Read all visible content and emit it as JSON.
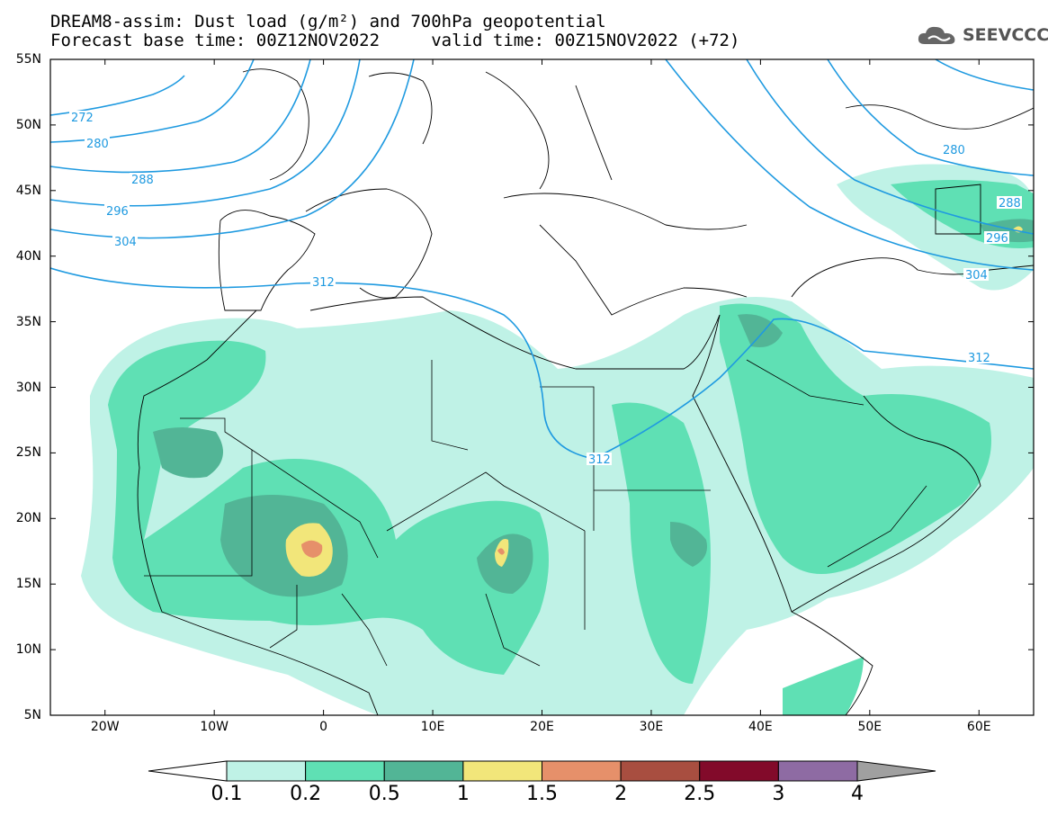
{
  "header": {
    "line1": "DREAM8-assim: Dust load (g/m²) and 700hPa geopotential",
    "line2": "Forecast base time: 00Z12NOV2022     valid time: 00Z15NOV2022 (+72)"
  },
  "logo": {
    "text": "SEEVCCC",
    "icon": "cloud-logo-icon"
  },
  "map": {
    "lon_range": [
      -25,
      65
    ],
    "lat_range": [
      5,
      55
    ],
    "y_ticks": [
      "55N",
      "50N",
      "45N",
      "40N",
      "35N",
      "30N",
      "25N",
      "20N",
      "15N",
      "10N",
      "5N"
    ],
    "x_ticks": [
      "20W",
      "10W",
      "0",
      "10E",
      "20E",
      "30E",
      "40E",
      "50E",
      "60E"
    ],
    "contour_labels": [
      "272",
      "280",
      "288",
      "296",
      "304",
      "312",
      "312",
      "312",
      "280",
      "288",
      "296",
      "304"
    ],
    "contour_color": "#1f9ae0"
  },
  "colorbar": {
    "labels": [
      "0.1",
      "0.2",
      "0.5",
      "1",
      "1.5",
      "2",
      "2.5",
      "3",
      "4"
    ],
    "colors": [
      "#ffffff",
      "#bff2e6",
      "#5fe0b4",
      "#52b596",
      "#f2e67a",
      "#e6906a",
      "#a84e40",
      "#820a2a",
      "#8e6ba3",
      "#a0a0a0"
    ]
  }
}
